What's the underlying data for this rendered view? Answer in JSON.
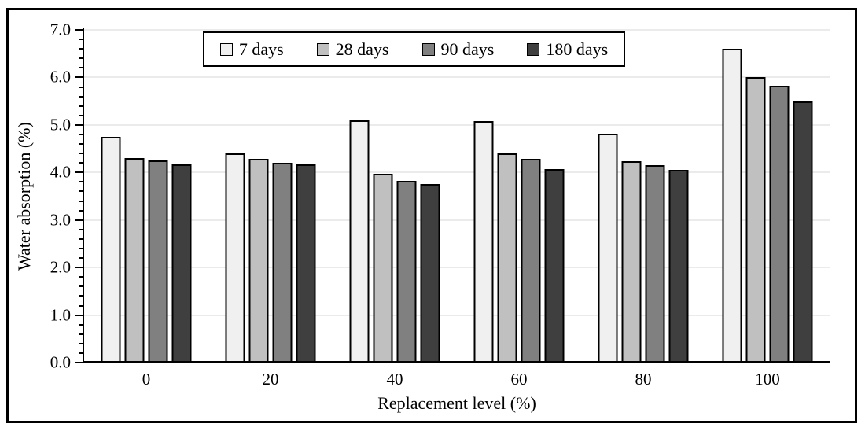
{
  "figure": {
    "kind": "grouped-bar-chart",
    "background_color": "#ffffff",
    "frame_border_color": "#000000",
    "grid_color": "#ebebeb",
    "axis_color": "#000000",
    "bar_border_color": "#000000"
  },
  "chart_data": {
    "type": "bar",
    "title": "",
    "xlabel": "Replacement level (%)",
    "ylabel": "Water absorption (%)",
    "categories": [
      "0",
      "20",
      "40",
      "60",
      "80",
      "100"
    ],
    "series": [
      {
        "name": "7 days",
        "color": "#f0f0f0",
        "values": [
          4.75,
          4.4,
          5.1,
          5.08,
          4.82,
          6.6
        ]
      },
      {
        "name": "28 days",
        "color": "#c0c0c0",
        "values": [
          4.3,
          4.28,
          3.97,
          4.4,
          4.23,
          6.0
        ]
      },
      {
        "name": "90 days",
        "color": "#808080",
        "values": [
          4.25,
          4.2,
          3.83,
          4.28,
          4.15,
          5.83
        ]
      },
      {
        "name": "180 days",
        "color": "#3f3f3f",
        "values": [
          4.17,
          4.17,
          3.76,
          4.07,
          4.05,
          5.5
        ]
      }
    ],
    "ylim": [
      0,
      7
    ],
    "y_major_step": 1.0,
    "y_minor_step": 0.2,
    "y_tick_labels": [
      "0.0",
      "1.0",
      "2.0",
      "3.0",
      "4.0",
      "5.0",
      "6.0",
      "7.0"
    ],
    "grid": "horizontal-major",
    "legend_position": "top-inside-boxed"
  }
}
